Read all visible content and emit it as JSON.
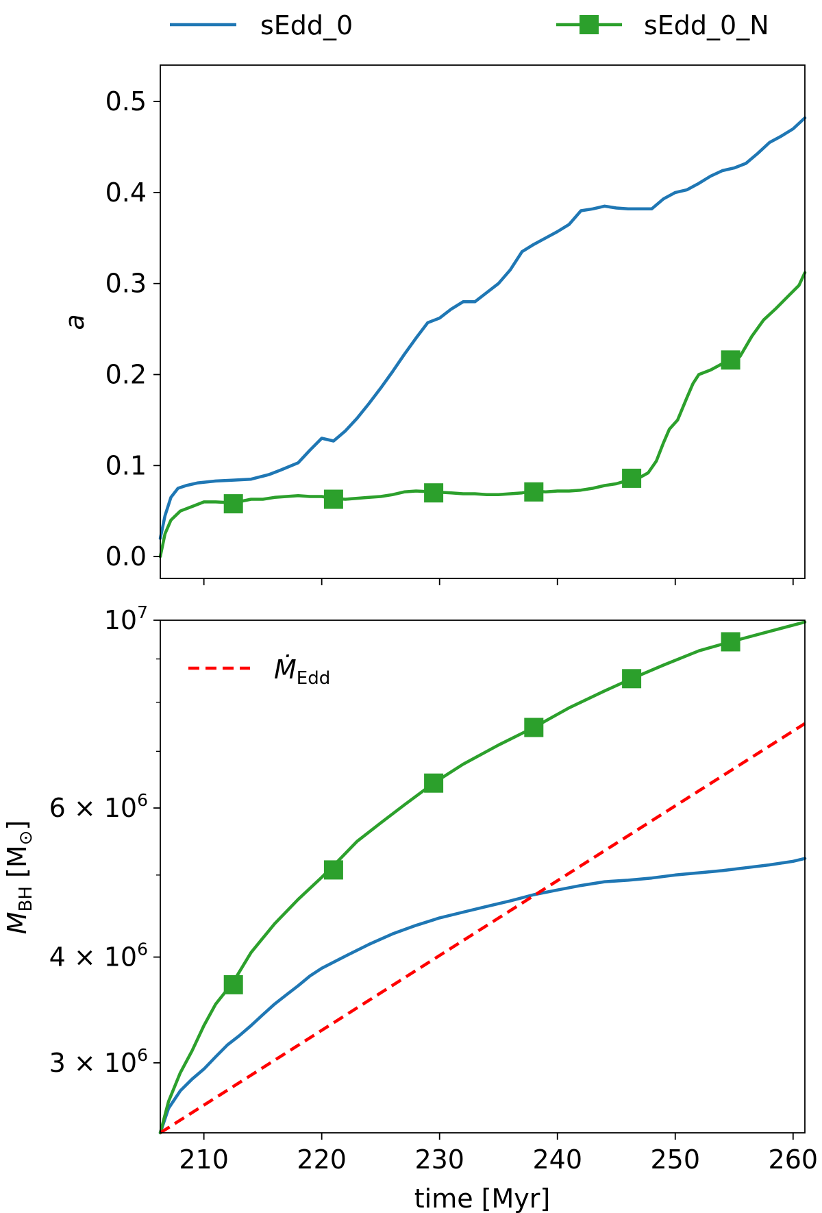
{
  "colors": {
    "series_blue": "#1f77b4",
    "series_green": "#2ca02c",
    "eddington_red": "#ff0000",
    "axis": "#000000"
  },
  "legend": {
    "series": [
      {
        "name": "sEdd_0",
        "color": "#1f77b4",
        "marker": "none"
      },
      {
        "name": "sEdd_0_N",
        "color": "#2ca02c",
        "marker": "square"
      }
    ],
    "placement": "top, outside plots, two columns"
  },
  "chart_data": [
    {
      "type": "line",
      "panel": "top",
      "xlabel": "",
      "ylabel": "a",
      "xlim": [
        206.3,
        261
      ],
      "ylim": [
        -0.024,
        0.54
      ],
      "xticks": [
        210,
        220,
        230,
        240,
        250,
        260
      ],
      "show_xtick_labels": false,
      "yticks": [
        0.0,
        0.1,
        0.2,
        0.3,
        0.4,
        0.5
      ],
      "ytick_labels": [
        "0.0",
        "0.1",
        "0.2",
        "0.3",
        "0.4",
        "0.5"
      ],
      "grid": false,
      "series": [
        {
          "name": "sEdd_0",
          "color": "#1f77b4",
          "x": [
            206.3,
            206.7,
            207.2,
            207.8,
            208.5,
            209.5,
            211,
            212.5,
            214,
            215.5,
            216.5,
            218,
            219,
            220,
            221,
            222,
            223,
            224,
            225,
            226,
            227,
            228,
            229,
            230,
            231,
            232,
            233,
            234,
            235,
            236,
            237,
            238,
            239,
            240,
            241,
            242,
            243,
            244,
            245,
            246,
            247,
            248,
            249,
            250,
            251,
            252,
            253,
            254,
            255,
            256,
            257,
            258,
            259,
            260,
            261
          ],
          "y": [
            0.02,
            0.045,
            0.065,
            0.075,
            0.078,
            0.081,
            0.083,
            0.084,
            0.085,
            0.09,
            0.095,
            0.103,
            0.117,
            0.13,
            0.127,
            0.138,
            0.152,
            0.168,
            0.185,
            0.203,
            0.222,
            0.24,
            0.257,
            0.262,
            0.272,
            0.28,
            0.28,
            0.29,
            0.3,
            0.315,
            0.335,
            0.343,
            0.35,
            0.357,
            0.365,
            0.38,
            0.382,
            0.385,
            0.383,
            0.382,
            0.382,
            0.382,
            0.393,
            0.4,
            0.403,
            0.41,
            0.418,
            0.424,
            0.427,
            0.432,
            0.443,
            0.455,
            0.462,
            0.47,
            0.482
          ]
        },
        {
          "name": "sEdd_0_N",
          "color": "#2ca02c",
          "marker": "square",
          "x": [
            206.3,
            206.7,
            207.2,
            208,
            209,
            210,
            211,
            212.5,
            214,
            215,
            216,
            217,
            218,
            219,
            220,
            221,
            222,
            223,
            224,
            225,
            226,
            227,
            228,
            229.5,
            231,
            232,
            233,
            234,
            235,
            236,
            237,
            238,
            239,
            240,
            241,
            242,
            243,
            244,
            245,
            246.3,
            247,
            247.7,
            248.4,
            249,
            249.5,
            250.2,
            251,
            251.5,
            252,
            253,
            254,
            254.7,
            255.5,
            256.5,
            257.5,
            258.5,
            259.5,
            260.5,
            261
          ],
          "y": [
            0.0,
            0.025,
            0.04,
            0.05,
            0.055,
            0.06,
            0.06,
            0.059,
            0.063,
            0.063,
            0.065,
            0.066,
            0.067,
            0.066,
            0.066,
            0.064,
            0.063,
            0.064,
            0.065,
            0.066,
            0.068,
            0.071,
            0.072,
            0.071,
            0.07,
            0.069,
            0.069,
            0.068,
            0.068,
            0.069,
            0.07,
            0.072,
            0.071,
            0.072,
            0.072,
            0.073,
            0.075,
            0.078,
            0.08,
            0.085,
            0.087,
            0.092,
            0.105,
            0.125,
            0.14,
            0.15,
            0.175,
            0.19,
            0.2,
            0.205,
            0.212,
            0.215,
            0.22,
            0.242,
            0.26,
            0.272,
            0.285,
            0.298,
            0.312
          ],
          "marker_x": [
            212.5,
            221,
            229.5,
            238,
            246.3,
            254.7
          ],
          "marker_y": [
            0.058,
            0.063,
            0.07,
            0.071,
            0.086,
            0.216
          ]
        }
      ]
    },
    {
      "type": "line",
      "panel": "bottom",
      "xlabel": "time [Myr]",
      "ylabel_main": "M",
      "ylabel_sub": "BH",
      "ylabel_unit_open": " [M",
      "ylabel_unit_sub": "⊙",
      "ylabel_unit_close": "]",
      "yscale": "log",
      "xlim": [
        206.3,
        261
      ],
      "ylim": [
        2480000,
        10000000
      ],
      "xticks": [
        210,
        220,
        230,
        240,
        250,
        260
      ],
      "xtick_labels": [
        "210",
        "220",
        "230",
        "240",
        "250",
        "260"
      ],
      "yticks_major": [
        {
          "value": 3000000,
          "mantissa": "3 × 10",
          "exponent": "6"
        },
        {
          "value": 4000000,
          "mantissa": "4 × 10",
          "exponent": "6"
        },
        {
          "value": 6000000,
          "mantissa": "6 × 10",
          "exponent": "6"
        },
        {
          "value": 10000000,
          "mantissa": "10",
          "exponent": "7"
        }
      ],
      "yticks_minor": [
        5000000,
        7000000,
        8000000,
        9000000
      ],
      "grid": false,
      "inner_legend": {
        "label_main": "Ṁ",
        "label_sub": "Edd",
        "color": "#ff0000",
        "style": "dashed",
        "placement": "upper-left"
      },
      "series": [
        {
          "name": "sEdd_0",
          "color": "#1f77b4",
          "x": [
            206.3,
            207,
            208,
            209,
            210,
            211,
            212,
            213,
            214,
            215,
            216,
            217,
            218,
            219,
            220,
            222,
            224,
            226,
            228,
            230,
            232,
            234,
            236,
            238,
            240,
            242,
            244,
            246,
            248,
            250,
            252,
            254,
            256,
            258,
            260,
            261
          ],
          "y": [
            2480000,
            2650000,
            2780000,
            2870000,
            2950000,
            3050000,
            3150000,
            3230000,
            3320000,
            3420000,
            3520000,
            3610000,
            3700000,
            3800000,
            3880000,
            4010000,
            4140000,
            4260000,
            4360000,
            4450000,
            4520000,
            4590000,
            4660000,
            4740000,
            4800000,
            4860000,
            4910000,
            4930000,
            4960000,
            5000000,
            5030000,
            5060000,
            5100000,
            5140000,
            5190000,
            5230000
          ]
        },
        {
          "name": "sEdd_0_N",
          "color": "#2ca02c",
          "marker": "square",
          "x": [
            206.3,
            207,
            208,
            209,
            210,
            211,
            212.5,
            214,
            216,
            218,
            220,
            221,
            223,
            225,
            227,
            229.5,
            232,
            235,
            238,
            241,
            244,
            246.3,
            249,
            252,
            254.7,
            258,
            261
          ],
          "y": [
            2480000,
            2700000,
            2920000,
            3100000,
            3320000,
            3520000,
            3740000,
            4050000,
            4380000,
            4680000,
            4970000,
            5130000,
            5480000,
            5760000,
            6050000,
            6420000,
            6760000,
            7120000,
            7470000,
            7880000,
            8250000,
            8530000,
            8850000,
            9200000,
            9430000,
            9700000,
            9950000
          ],
          "marker_x": [
            212.5,
            221,
            229.5,
            238,
            246.3,
            254.7
          ],
          "marker_y": [
            3710000,
            5070000,
            6420000,
            7470000,
            8530000,
            9430000
          ]
        },
        {
          "name": "Ṁ_Edd",
          "color": "#ff0000",
          "style": "dashed",
          "x": [
            206.3,
            261
          ],
          "y": [
            2480000,
            7550000
          ]
        }
      ]
    }
  ]
}
